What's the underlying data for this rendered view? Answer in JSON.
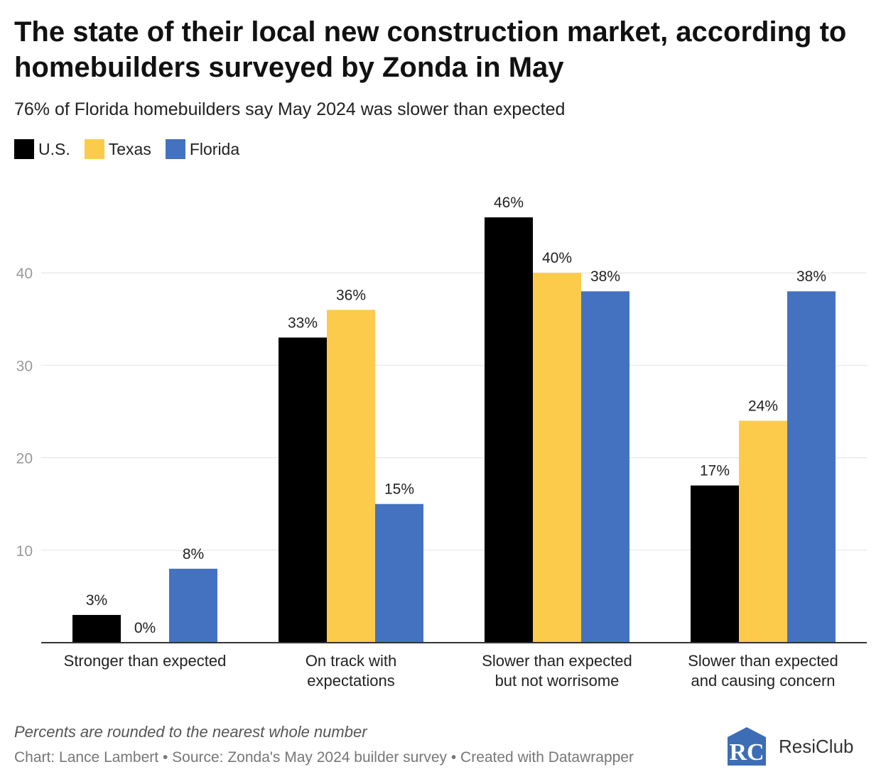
{
  "title": "The state of their local new construction market, according to homebuilders surveyed by Zonda in May",
  "subtitle": "76% of Florida homebuilders say May 2024 was slower than expected",
  "note": "Percents are rounded to the nearest whole number",
  "source": "Chart: Lance Lambert • Source: Zonda's May 2024 builder survey • Created with Datawrapper",
  "logo": {
    "text": "ResiClub",
    "mark": "RC"
  },
  "colors": {
    "us": "#000000",
    "texas": "#fdcb4c",
    "florida": "#4472c0",
    "grid": "#e2e2e2",
    "axis": "#333333",
    "tick": "#999999"
  },
  "chart_data": {
    "type": "bar",
    "title": "The state of their local new construction market, according to homebuilders surveyed by Zonda in May",
    "subtitle": "76% of Florida homebuilders say May 2024 was slower than expected",
    "categories": [
      [
        "Stronger than expected"
      ],
      [
        "On track with",
        "expectations"
      ],
      [
        "Slower than expected",
        "but not worrisome"
      ],
      [
        "Slower than expected",
        "and causing concern"
      ]
    ],
    "series": [
      {
        "name": "U.S.",
        "values": [
          3,
          33,
          46,
          17
        ],
        "labels": [
          "3%",
          "33%",
          "46%",
          "17%"
        ],
        "color": "#000000"
      },
      {
        "name": "Texas",
        "values": [
          0,
          36,
          40,
          24
        ],
        "labels": [
          "0%",
          "36%",
          "40%",
          "24%"
        ],
        "color": "#fdcb4c"
      },
      {
        "name": "Florida",
        "values": [
          8,
          15,
          38,
          38
        ],
        "labels": [
          "8%",
          "15%",
          "38%",
          "38%"
        ],
        "color": "#4472c0"
      }
    ],
    "yticks": [
      10,
      20,
      30,
      40
    ],
    "ylim": [
      0,
      50
    ],
    "xlabel": "",
    "ylabel": "",
    "grid": true,
    "legend": "top-left"
  }
}
